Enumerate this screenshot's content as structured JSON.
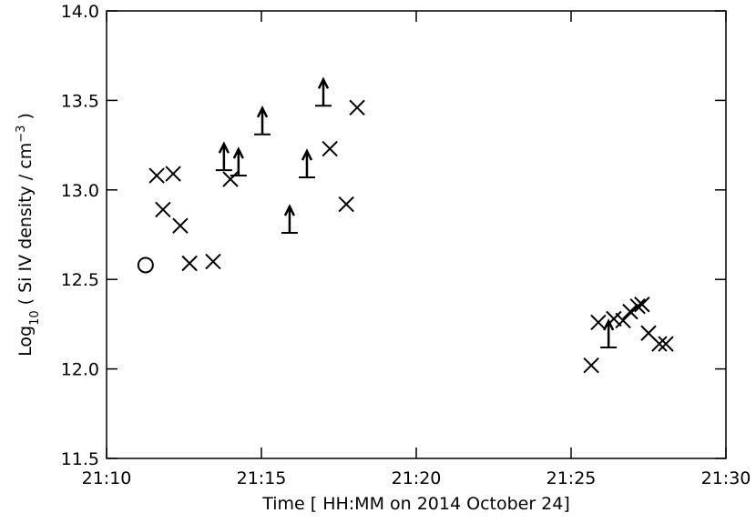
{
  "chart_data": {
    "type": "scatter",
    "xlabel": "Time [ HH:MM on 2014 October 24]",
    "ylabel": [
      "Log",
      "10",
      " ( Si IV density / cm",
      "−3",
      " )"
    ],
    "xlim": [
      10,
      30
    ],
    "xticks": [
      {
        "value": 10,
        "label": "21:10"
      },
      {
        "value": 15,
        "label": "21:15"
      },
      {
        "value": 20,
        "label": "21:20"
      },
      {
        "value": 25,
        "label": "21:25"
      },
      {
        "value": 30,
        "label": "21:30"
      }
    ],
    "ylim": [
      11.5,
      14
    ],
    "yticks": [
      11.5,
      {
        "value": 12,
        "label": "12.0"
      },
      12.5,
      {
        "value": 13,
        "label": "13.0"
      },
      13.5,
      {
        "value": 14,
        "label": "14.0"
      }
    ],
    "series": [
      {
        "marker": "cross",
        "color": "#000000",
        "x": [
          11.62,
          12.15,
          11.82,
          12.38,
          12.68,
          13.44,
          14.0,
          17.21,
          17.74,
          18.09,
          25.65,
          25.88,
          26.38,
          26.68,
          26.91,
          27.15,
          27.29,
          27.5,
          27.85,
          28.06
        ],
        "values": [
          13.08,
          13.09,
          12.89,
          12.8,
          12.59,
          12.6,
          13.06,
          13.23,
          12.92,
          13.46,
          12.02,
          12.26,
          12.28,
          12.27,
          12.32,
          12.35,
          12.36,
          12.2,
          12.14,
          12.14
        ]
      },
      {
        "marker": "lower-limit",
        "color": "#000000",
        "x": [
          13.79,
          14.26,
          15.03,
          15.91,
          16.47,
          17.0,
          26.21
        ],
        "values": [
          13.11,
          13.08,
          13.31,
          12.76,
          13.07,
          13.47,
          12.12
        ]
      },
      {
        "marker": "circle",
        "color": "#000000",
        "x": [
          11.26
        ],
        "values": [
          12.58
        ]
      }
    ]
  }
}
